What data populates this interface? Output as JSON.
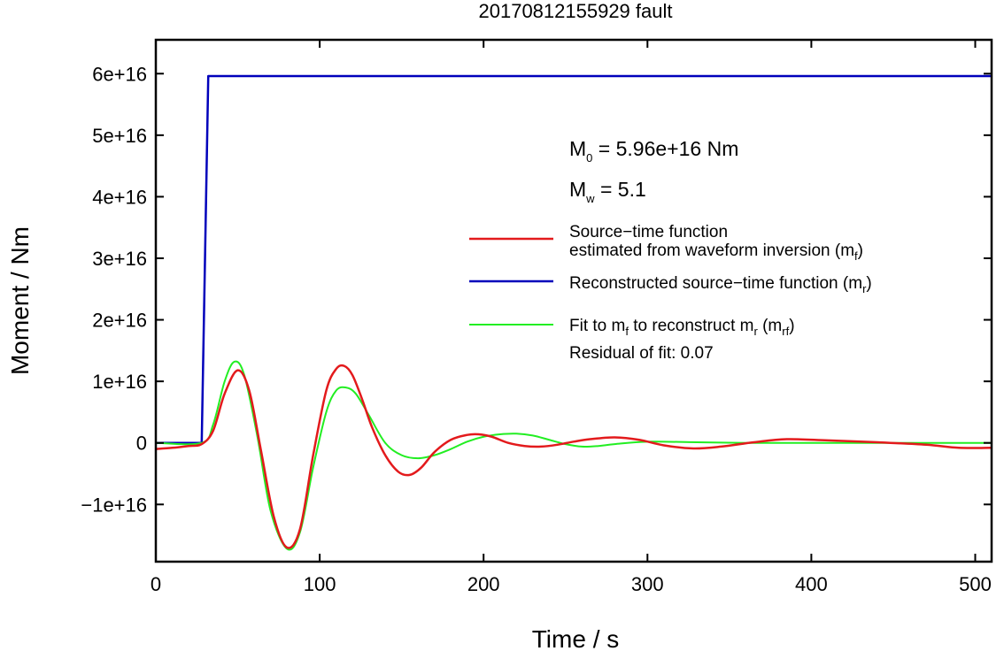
{
  "chart_data": {
    "type": "line",
    "title": "20170812155929 fault",
    "xlabel": "Time / s",
    "ylabel": "Moment / Nm",
    "xlim": [
      0,
      510
    ],
    "ylim": [
      -1.93e+16,
      6.55e+16
    ],
    "xticks": [
      0,
      100,
      200,
      300,
      400,
      500
    ],
    "xtick_labels": [
      "0",
      "100",
      "200",
      "300",
      "400",
      "500"
    ],
    "yticks": [
      -1e+16,
      0,
      1e+16,
      2e+16,
      3e+16,
      4e+16,
      5e+16,
      6e+16
    ],
    "ytick_labels": [
      "−1e+16",
      "0",
      "1e+16",
      "2e+16",
      "3e+16",
      "4e+16",
      "5e+16",
      "6e+16"
    ],
    "grid": false,
    "annotations": {
      "m0": {
        "sym": "M",
        "sub": "0",
        "text": " = 5.96e+16 Nm"
      },
      "mw": {
        "sym": "M",
        "sub": "w",
        "text": " = 5.1"
      },
      "residual": "Residual of fit: 0.07"
    },
    "legend": {
      "placement": "center-right",
      "entries": [
        {
          "line1": "Source−time function",
          "line2_pre": "estimated from waveform inversion (m",
          "line2_sub": "f",
          "line2_post": ")",
          "color": "#e31a1c"
        },
        {
          "pre": "Reconstructed source−time function (m",
          "sub": "r",
          "post": ")",
          "color": "#0000bb"
        },
        {
          "pre": "Fit to m",
          "sub1": "f",
          "mid": " to reconstruct m",
          "sub2": "r",
          "mid2": " (m",
          "sub3": "rf",
          "post": ")",
          "color": "#22ee22"
        }
      ]
    },
    "series": [
      {
        "name": "Source−time function estimated from waveform inversion (mf)",
        "color": "#e31a1c",
        "x": [
          0,
          10,
          20,
          28,
          35,
          42,
          50,
          57,
          64,
          72,
          80,
          88,
          96,
          104,
          110,
          115,
          120,
          126,
          132,
          140,
          148,
          155,
          162,
          170,
          180,
          190,
          197,
          205,
          215,
          225,
          235,
          245,
          255,
          265,
          280,
          295,
          310,
          328,
          345,
          365,
          385,
          410,
          440,
          470,
          490,
          510
        ],
        "y": [
          -1000000000000000.0,
          -800000000000000.0,
          -500000000000000.0,
          -200000000000000.0,
          2000000000000000.0,
          8000000000000000.0,
          1.18e+16,
          8500000000000000.0,
          -1000000000000000.0,
          -1.2e+16,
          -1.7e+16,
          -1.4e+16,
          -2000000000000000.0,
          8500000000000000.0,
          1.2e+16,
          1.25e+16,
          1.1e+16,
          7000000000000000.0,
          2500000000000000.0,
          -2000000000000000.0,
          -4700000000000000.0,
          -5200000000000000.0,
          -4000000000000000.0,
          -1500000000000000.0,
          500000000000000.0,
          1300000000000000.0,
          1400000000000000.0,
          1000000000000000.0,
          0.0,
          -500000000000000.0,
          -600000000000000.0,
          -300000000000000.0,
          200000000000000.0,
          600000000000000.0,
          900000000000000.0,
          500000000000000.0,
          -400000000000000.0,
          -900000000000000.0,
          -600000000000000.0,
          100000000000000.0,
          600000000000000.0,
          400000000000000.0,
          100000000000000.0,
          -300000000000000.0,
          -800000000000000.0,
          -800000000000000.0
        ]
      },
      {
        "name": "Reconstructed source−time function (mr)",
        "color": "#0000bb",
        "x": [
          0,
          28,
          32,
          510
        ],
        "y": [
          0,
          0,
          5.96e+16,
          5.96e+16
        ]
      },
      {
        "name": "Fit to mf to reconstruct mr (mrf)",
        "color": "#22ee22",
        "x": [
          0,
          28,
          35,
          42,
          48,
          54,
          62,
          70,
          80,
          88,
          96,
          104,
          110,
          116,
          122,
          130,
          140,
          150,
          160,
          170,
          180,
          190,
          200,
          210,
          220,
          230,
          240,
          250,
          260,
          270,
          280,
          300,
          330,
          360,
          400,
          450,
          510
        ],
        "y": [
          0,
          0,
          3000000000000000.0,
          1e+16,
          1.32e+16,
          1.1e+16,
          1000000000000000.0,
          -1.1e+16,
          -1.72e+16,
          -1.45e+16,
          -4000000000000000.0,
          5000000000000000.0,
          8500000000000000.0,
          9000000000000000.0,
          8000000000000000.0,
          4500000000000000.0,
          0.0,
          -2000000000000000.0,
          -2500000000000000.0,
          -2000000000000000.0,
          -1000000000000000.0,
          200000000000000.0,
          1000000000000000.0,
          1400000000000000.0,
          1500000000000000.0,
          1200000000000000.0,
          500000000000000.0,
          -200000000000000.0,
          -600000000000000.0,
          -500000000000000.0,
          -200000000000000.0,
          200000000000000.0,
          100000000000000.0,
          0.0,
          0.0,
          0.0,
          0.0
        ]
      }
    ]
  }
}
